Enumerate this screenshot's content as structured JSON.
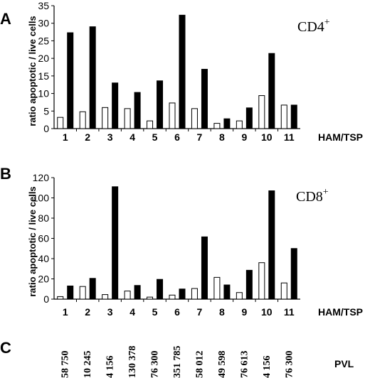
{
  "colors": {
    "open_bar": "#ffffff",
    "filled_bar": "#000000",
    "axis": "#000000"
  },
  "chart_data": [
    {
      "type": "bar",
      "panel": "A",
      "cell_label": "CD4",
      "cell_sup": "+",
      "ylabel": "ratio apoptotic / live cells",
      "xlabel": "HAM/TSP",
      "ylim": [
        0,
        35
      ],
      "yticks": [
        "0",
        "5",
        "10",
        "15",
        "20",
        "25",
        "30",
        "35"
      ],
      "grid": false,
      "categories": [
        "1",
        "2",
        "3",
        "4",
        "5",
        "6",
        "7",
        "8",
        "9",
        "10",
        "11"
      ],
      "series": [
        {
          "style": "open",
          "values": [
            3.2,
            4.8,
            6.0,
            5.7,
            2.2,
            7.3,
            5.7,
            1.5,
            2.2,
            9.4,
            6.7
          ]
        },
        {
          "style": "filled",
          "values": [
            27.3,
            29.0,
            13.0,
            10.3,
            13.6,
            32.3,
            16.9,
            2.8,
            5.9,
            21.4,
            6.7
          ]
        }
      ]
    },
    {
      "type": "bar",
      "panel": "B",
      "cell_label": "CD8",
      "cell_sup": "+",
      "ylabel": "ratio apoptotic / live cells",
      "xlabel": "HAM/TSP",
      "ylim": [
        0,
        120
      ],
      "yticks": [
        "0",
        "20",
        "40",
        "60",
        "80",
        "100",
        "120"
      ],
      "grid": false,
      "categories": [
        "1",
        "2",
        "3",
        "4",
        "5",
        "6",
        "7",
        "8",
        "9",
        "10",
        "11"
      ],
      "series": [
        {
          "style": "open",
          "values": [
            2.5,
            12.5,
            4.5,
            8.0,
            2.0,
            4.0,
            10.5,
            21.5,
            6.5,
            36.0,
            16.0
          ]
        },
        {
          "style": "filled",
          "values": [
            13.0,
            20.5,
            111.0,
            13.5,
            19.5,
            10.0,
            61.5,
            14.0,
            28.5,
            107.0,
            50.0
          ]
        }
      ]
    }
  ],
  "panel_c": {
    "panel": "C",
    "label": "PVL",
    "values": [
      "58 750",
      "10 245",
      "4 156",
      "130 378",
      "76 300",
      "351 785",
      "58 012",
      "49 598",
      "76 613",
      "4 156",
      "76 300"
    ]
  }
}
